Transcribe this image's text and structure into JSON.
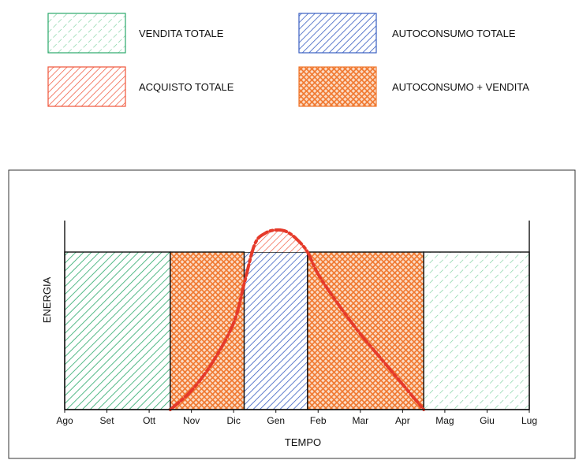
{
  "chart_data": {
    "type": "area",
    "title": "",
    "xlabel": "TEMPO",
    "ylabel": "ENERGIA",
    "months": [
      "Ago",
      "Set",
      "Ott",
      "Nov",
      "Dic",
      "Gen",
      "Feb",
      "Mar",
      "Apr",
      "Mag",
      "Giu",
      "Lug"
    ],
    "legend": [
      {
        "key": "vendita",
        "label": "VENDITA TOTALE",
        "color": "#2aa86a"
      },
      {
        "key": "autoconsumo",
        "label": "AUTOCONSUMO TOTALE",
        "color": "#3a5fc2"
      },
      {
        "key": "acquisto",
        "label": "ACQUISTO TOTALE",
        "color": "#f0553a"
      },
      {
        "key": "misto",
        "label": "AUTOCONSUMO + VENDITA",
        "color": "#f2782f"
      }
    ],
    "regions": [
      {
        "key": "vendita",
        "from": 0,
        "to": 2.5
      },
      {
        "key": "misto",
        "from": 2.5,
        "to": 4.25
      },
      {
        "key": "autoconsumo",
        "from": 4.25,
        "to": 5.75
      },
      {
        "key": "misto",
        "from": 5.75,
        "to": 8.5
      },
      {
        "key": "vendita",
        "from": 8.5,
        "to": 11
      }
    ],
    "production_level": 1.0,
    "demand_curve": {
      "color": "#e53a2a",
      "points": [
        [
          2.5,
          0.0
        ],
        [
          3.0,
          0.12
        ],
        [
          3.5,
          0.3
        ],
        [
          4.0,
          0.55
        ],
        [
          4.25,
          0.8
        ],
        [
          4.5,
          1.05
        ],
        [
          4.75,
          1.12
        ],
        [
          5.0,
          1.14
        ],
        [
          5.25,
          1.13
        ],
        [
          5.5,
          1.08
        ],
        [
          5.75,
          1.0
        ],
        [
          6.0,
          0.86
        ],
        [
          6.5,
          0.66
        ],
        [
          7.0,
          0.48
        ],
        [
          7.5,
          0.32
        ],
        [
          8.0,
          0.16
        ],
        [
          8.5,
          0.0
        ]
      ]
    },
    "ylim": [
      0,
      1.25
    ],
    "grid": false,
    "legend_position": "top"
  }
}
